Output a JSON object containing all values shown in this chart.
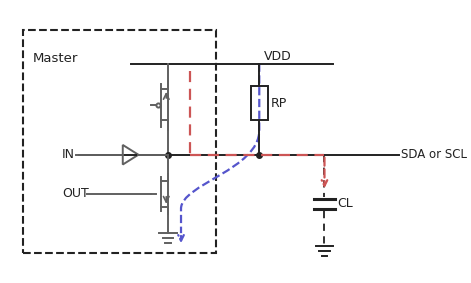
{
  "bg_color": "#ffffff",
  "gray": "#606060",
  "dark": "#222222",
  "red_dash": "#cc5555",
  "blue_dash": "#5555cc",
  "vdd_label": "VDD",
  "rp_label": "RP",
  "sda_label": "SDA or SCL",
  "cl_label": "CL",
  "in_label": "IN",
  "out_label": "OUT",
  "master_label": "Master"
}
